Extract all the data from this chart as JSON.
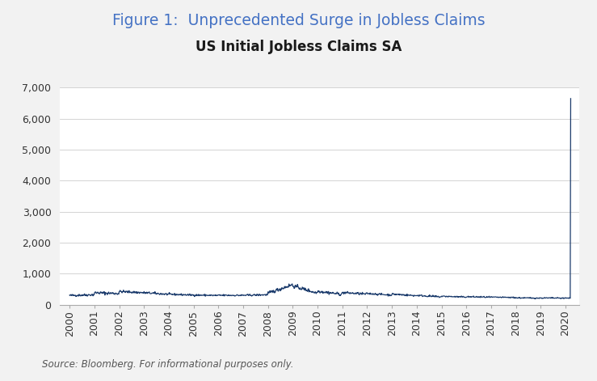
{
  "title": "Figure 1:  Unprecedented Surge in Jobless Claims",
  "subtitle": "US Initial Jobless Claims SA",
  "source_text": "Source: Bloomberg. For informational purposes only.",
  "title_color": "#4472C4",
  "subtitle_color": "#1a1a1a",
  "line_color": "#1a3a6b",
  "background_color": "#f0f0f0",
  "plot_bg_color": "#ffffff",
  "grid_color": "#cccccc",
  "border_color": "#e0e0e0",
  "ylim": [
    0,
    7000
  ],
  "yticks": [
    0,
    1000,
    2000,
    3000,
    4000,
    5000,
    6000,
    7000
  ],
  "ytick_labels": [
    "0",
    "1,000",
    "2,000",
    "3,000",
    "4,000",
    "5,000",
    "6,000",
    "7,000"
  ],
  "xtick_labels": [
    "2000",
    "2001",
    "2002",
    "2003",
    "2004",
    "2005",
    "2006",
    "2007",
    "2008",
    "2009",
    "2010",
    "2011",
    "2012",
    "2013",
    "2014",
    "2015",
    "2016",
    "2017",
    "2018",
    "2019",
    "2020"
  ],
  "title_fontsize": 13.5,
  "subtitle_fontsize": 12,
  "tick_fontsize": 9,
  "source_fontsize": 8.5
}
